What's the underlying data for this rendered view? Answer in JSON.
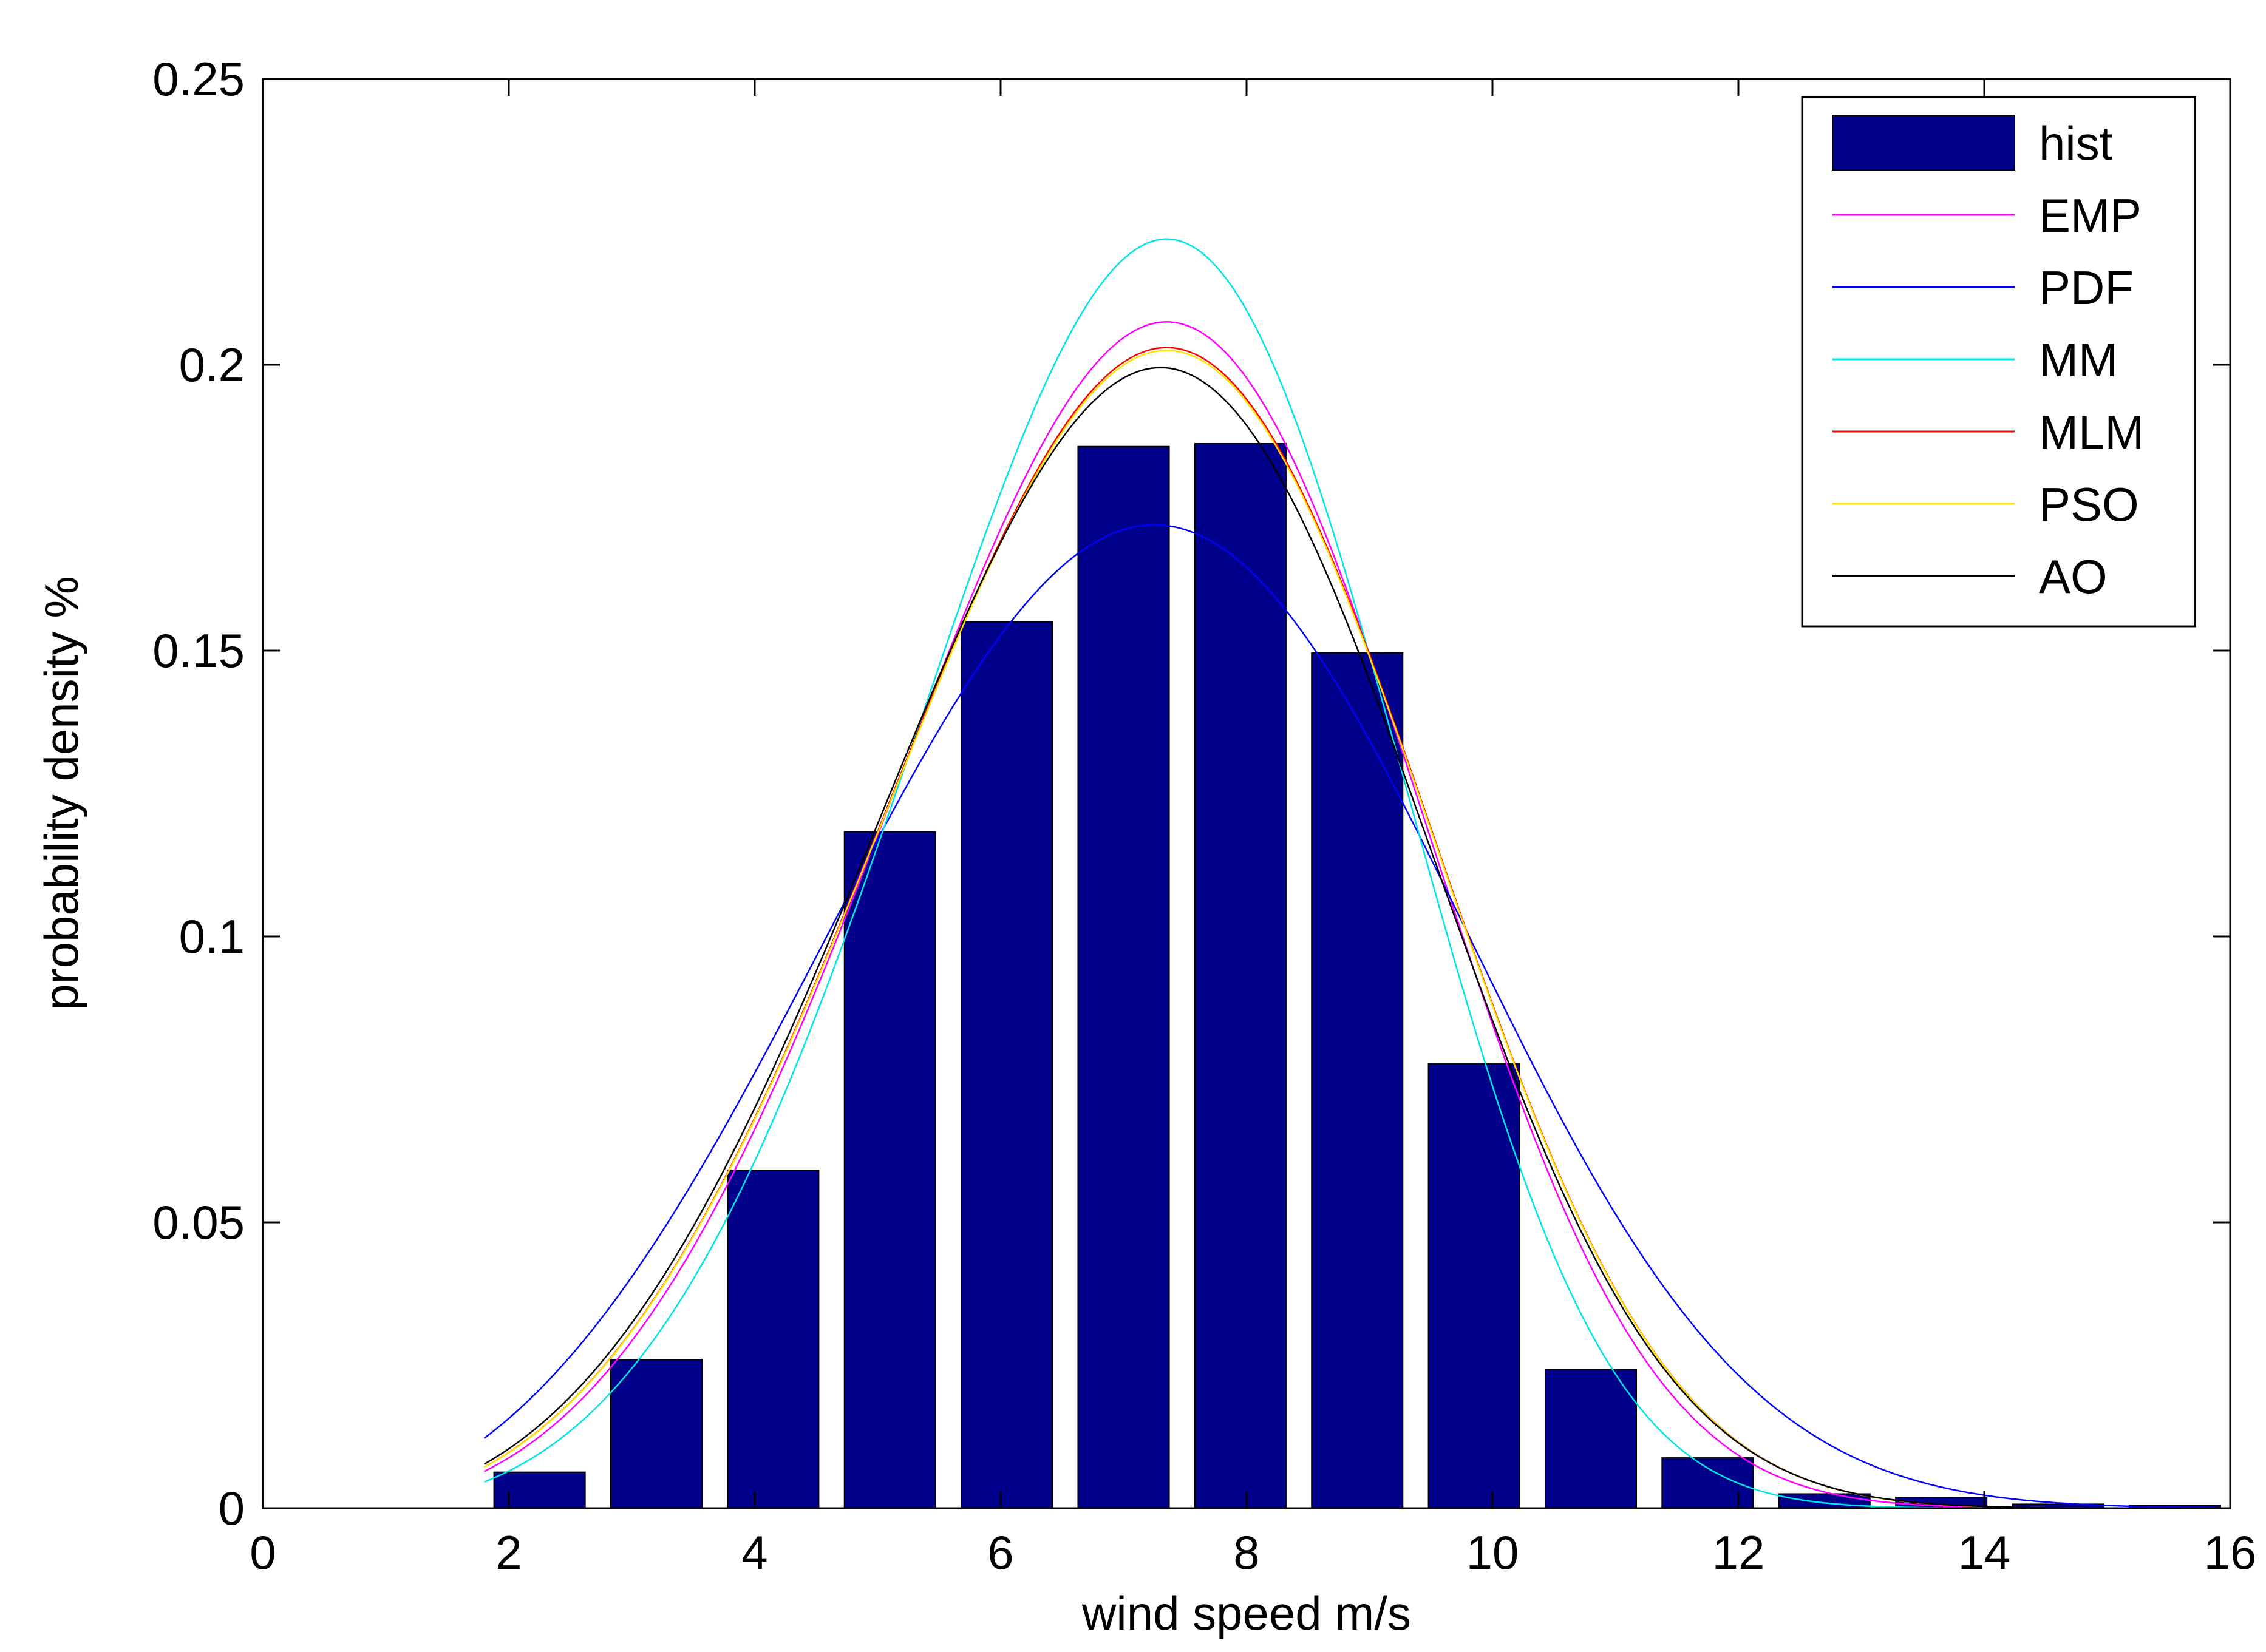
{
  "chart_data": {
    "type": "bar",
    "title": "",
    "xlabel": "wind speed m/s",
    "ylabel": "probability density %",
    "xlim": [
      0,
      16
    ],
    "ylim": [
      0,
      0.25
    ],
    "grid": false,
    "legend_position": "top-right",
    "x_ticks": [
      0,
      2,
      4,
      6,
      8,
      10,
      12,
      14,
      16
    ],
    "x_tick_labels": [
      "0",
      "2",
      "4",
      "6",
      "8",
      "10",
      "12",
      "14",
      "16"
    ],
    "y_ticks": [
      0,
      0.05,
      0.1,
      0.15,
      0.2,
      0.25
    ],
    "y_tick_labels": [
      "0",
      "0.05",
      "0.1",
      "0.15",
      "0.2",
      "0.25"
    ],
    "histogram": {
      "name": "hist",
      "color": "#00008b",
      "bin_width": 0.95,
      "bin_centers": [
        2.25,
        3.2,
        4.15,
        5.1,
        6.05,
        7.0,
        7.95,
        8.9,
        9.85,
        10.8,
        11.75,
        12.7,
        13.65,
        14.6,
        15.55
      ],
      "values": [
        0.0063,
        0.026,
        0.0591,
        0.1183,
        0.155,
        0.1857,
        0.1862,
        0.1496,
        0.0777,
        0.0243,
        0.0088,
        0.0025,
        0.0019,
        0.0007,
        0.0005
      ]
    },
    "curves": {
      "x_range": [
        1.8,
        15.9
      ],
      "series": [
        {
          "name": "EMP",
          "color": "#ff00ff",
          "peak_x": 7.35,
          "peak_y": 0.2075,
          "k": 4.0
        },
        {
          "name": "PDF",
          "color": "#0000ff",
          "peak_x": 7.25,
          "peak_y": 0.172,
          "k": 3.4
        },
        {
          "name": "MM",
          "color": "#00e5e5",
          "peak_x": 7.35,
          "peak_y": 0.222,
          "k": 4.3
        },
        {
          "name": "MLM",
          "color": "#ff0000",
          "peak_x": 7.35,
          "peak_y": 0.203,
          "k": 3.9
        },
        {
          "name": "PSO",
          "color": "#ffe600",
          "peak_x": 7.35,
          "peak_y": 0.2025,
          "k": 3.9
        },
        {
          "name": "AO",
          "color": "#000000",
          "peak_x": 7.3,
          "peak_y": 0.1995,
          "k": 3.85
        }
      ]
    }
  }
}
